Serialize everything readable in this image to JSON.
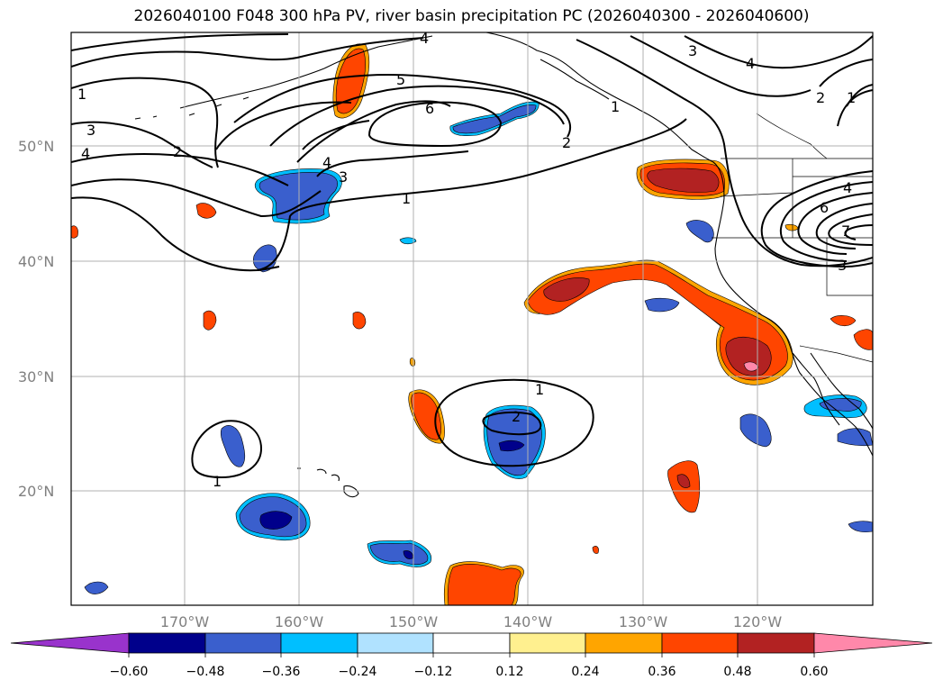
{
  "title": "2026040100 F048 300 hPa PV, river basin precipitation PC (2026040300 - 2026040600)",
  "map": {
    "lat_labels": [
      "50°N",
      "40°N",
      "30°N",
      "20°N"
    ],
    "lon_labels": [
      "170°W",
      "160°W",
      "150°W",
      "140°W",
      "130°W",
      "120°W"
    ]
  },
  "pv_contour_labels": [
    "4",
    "3",
    "4",
    "1",
    "1",
    "3",
    "4",
    "2",
    "5",
    "6",
    "4",
    "3",
    "1",
    "2",
    "2",
    "1",
    "4",
    "6",
    "7",
    "3",
    "1",
    "2",
    "1"
  ],
  "colorbar": {
    "ticks": [
      "−0.60",
      "−0.48",
      "−0.36",
      "−0.24",
      "−0.12",
      "0.12",
      "0.24",
      "0.36",
      "0.48",
      "0.60"
    ],
    "colors": {
      "under": "#9933cc",
      "c1": "#00008b",
      "c2": "#3a5fcd",
      "c3": "#00bfff",
      "c4": "#b0e2ff",
      "c5": "#ffffff",
      "c6": "#fff08f",
      "c7": "#ffa500",
      "c8": "#ff4500",
      "c9": "#b22222",
      "over": "#ff88aa"
    }
  }
}
